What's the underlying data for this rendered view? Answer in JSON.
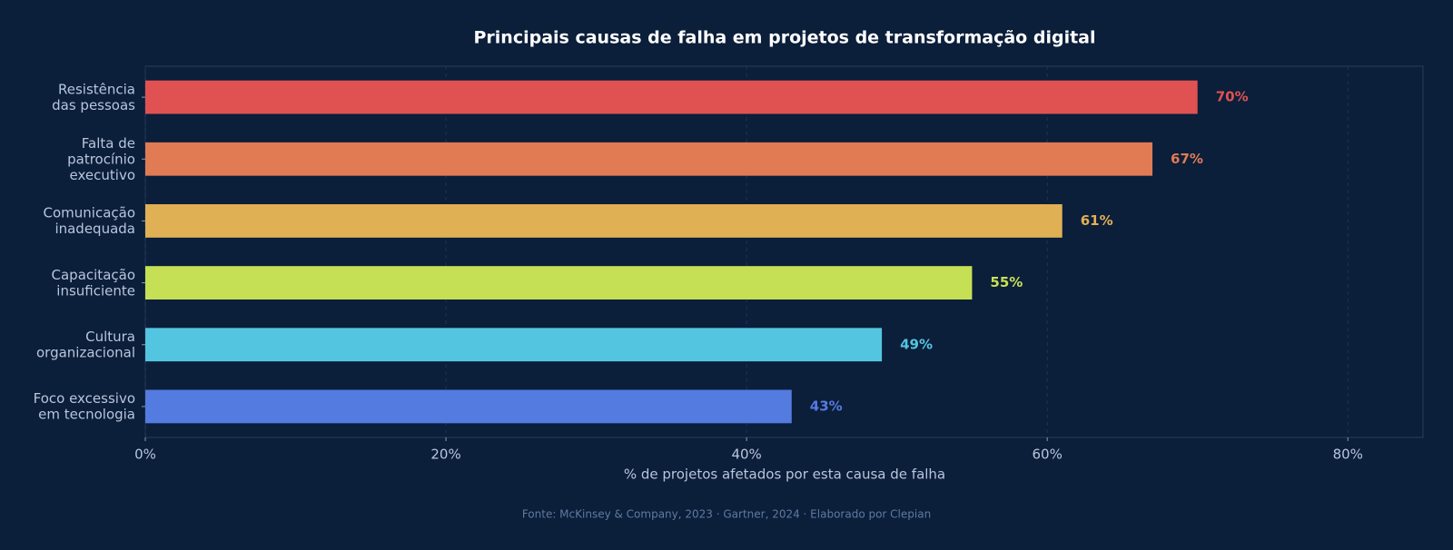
{
  "chart_data": {
    "type": "barh",
    "title": "Principais causas de falha em projetos de transformação digital",
    "x_label": "% de projetos afetados por esta causa de falha",
    "source": "Fonte: McKinsey & Company, 2023 · Gartner, 2024 · Elaborado por Clepian",
    "categories": [
      "Resistência\ndas pessoas",
      "Falta de\npatrocínio\nexecutivo",
      "Comunicação\ninadequada",
      "Capacitação\ninsuficiente",
      "Cultura\norganizacional",
      "Foco excessivo\nem tecnologia"
    ],
    "values": [
      70,
      67,
      61,
      55,
      49,
      43
    ],
    "value_labels": [
      "70%",
      "67%",
      "61%",
      "55%",
      "49%",
      "43%"
    ],
    "colors": [
      "#e05252",
      "#e07b54",
      "#e0b054",
      "#c5e054",
      "#54c5e0",
      "#547be0"
    ],
    "xlim": [
      0,
      85
    ],
    "xticks": [
      {
        "value": 0,
        "label": "0%"
      },
      {
        "value": 20,
        "label": "20%"
      },
      {
        "value": 40,
        "label": "40%"
      },
      {
        "value": 60,
        "label": "60%"
      },
      {
        "value": 80,
        "label": "80%"
      }
    ],
    "grid": true
  }
}
